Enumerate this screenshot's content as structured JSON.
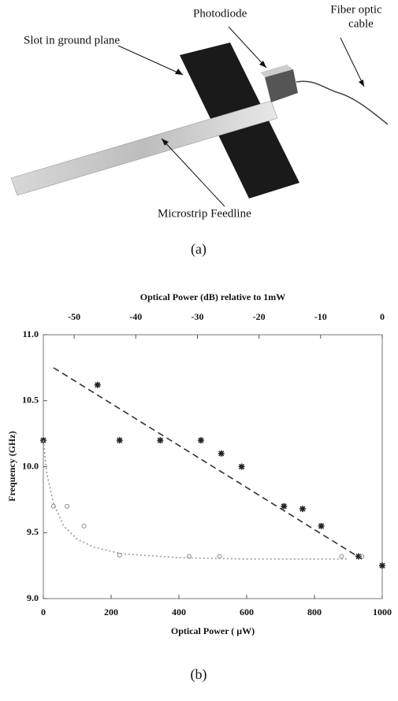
{
  "figure_a": {
    "labels": {
      "photodiode": "Photodiode",
      "fiber": [
        "Fiber optic",
        "cable"
      ],
      "slot": "Slot in ground plane",
      "feedline": "Microstrip Feedline"
    },
    "caption": "(a)"
  },
  "chart_data": {
    "type": "scatter",
    "title": "Optical Power (dB) relative to 1mW",
    "xlabel": "Optical Power ( μW)",
    "ylabel": "Frequency (GHz)",
    "xlim": [
      0,
      1000
    ],
    "xticks": [
      0,
      200,
      400,
      600,
      800,
      1000
    ],
    "ylim": [
      9.0,
      11.0
    ],
    "yticks": [
      {
        "value": 9.0,
        "label": "9.0"
      },
      9.5,
      {
        "value": 10.0,
        "label": "10.0"
      },
      10.5,
      {
        "value": 11.0,
        "label": "11.0"
      }
    ],
    "x2lim": [
      -55,
      0
    ],
    "x2ticks": [
      -50,
      -40,
      -30,
      -20,
      -10,
      0
    ],
    "grid": false,
    "series": [
      {
        "mode": "markers",
        "marker": "star",
        "color": "#222222",
        "x": [
          0,
          160,
          225,
          345,
          465,
          525,
          585,
          710,
          765,
          820,
          930,
          1000
        ],
        "values": [
          10.2,
          10.62,
          10.2,
          10.2,
          10.2,
          10.1,
          10.0,
          9.7,
          9.68,
          9.55,
          9.32,
          9.25
        ]
      },
      {
        "mode": "markers",
        "marker": "circle",
        "color": "#888888",
        "x": [
          30,
          70,
          120,
          225,
          430,
          520,
          880,
          940
        ],
        "values": [
          9.7,
          9.7,
          9.55,
          9.33,
          9.32,
          9.32,
          9.32,
          9.32
        ]
      },
      {
        "mode": "line",
        "dash": "8 5",
        "color": "#333333",
        "x": [
          30,
          940
        ],
        "values": [
          10.75,
          9.3
        ]
      },
      {
        "mode": "line",
        "dash": "2 3",
        "color": "#999999",
        "x": [
          0,
          10,
          30,
          60,
          100,
          150,
          230,
          400,
          600,
          900
        ],
        "values": [
          10.2,
          9.95,
          9.72,
          9.55,
          9.45,
          9.39,
          9.34,
          9.31,
          9.3,
          9.3
        ]
      }
    ]
  },
  "figure_b_caption": "(b)"
}
